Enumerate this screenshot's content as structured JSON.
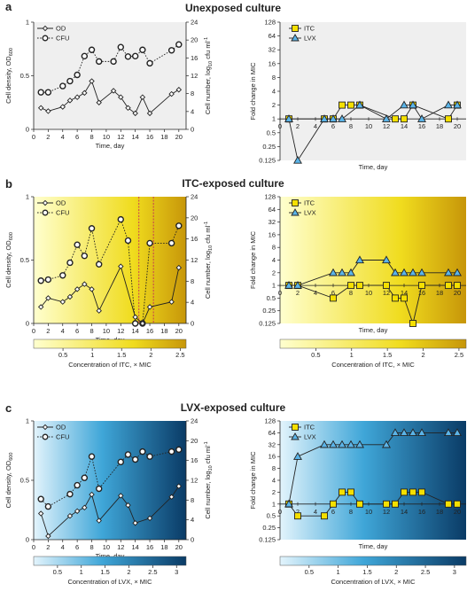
{
  "figure": {
    "panels": [
      {
        "letter": "a",
        "title": "Unexposed culture"
      },
      {
        "letter": "b",
        "title": "ITC-exposed culture"
      },
      {
        "letter": "c",
        "title": "LVX-exposed culture"
      }
    ]
  },
  "axis_text": {
    "x": "Time, day",
    "od": "Cell density, OD600",
    "od_prefix": "Cell density, OD",
    "od_sub": "600",
    "cfu": "Cell number, log10 cfu ml-1",
    "cfu_prefix": "Cell number, log",
    "cfu_sub": "10",
    "cfu_mid": " cfu ml",
    "cfu_sup": "-1",
    "mic": "Fold change in MIC",
    "od_ticks": [
      "0",
      "0.5",
      "1"
    ],
    "cfu_ticks": [
      "0",
      "4",
      "8",
      "12",
      "16",
      "20",
      "24"
    ],
    "day_ticks": [
      "0",
      "2",
      "4",
      "6",
      "8",
      "10",
      "12",
      "14",
      "16",
      "18",
      "20"
    ],
    "mic_ticks": [
      "0.125",
      "0.25",
      "0.5",
      "1",
      "2",
      "4",
      "8",
      "16",
      "32",
      "64",
      "128"
    ]
  },
  "legend": {
    "od": "OD",
    "cfu": "CFU",
    "itc": "ITC",
    "lvx": "LVX"
  },
  "colorbars": {
    "itc": {
      "label": "Concentration of ITC, × MIC",
      "ticks": [
        "0.5",
        "1",
        "1.5",
        "2",
        "2.5"
      ],
      "from": "#ffffcf",
      "to": "#c79609"
    },
    "lvx": {
      "label": "Concentration of LVX, × MIC",
      "ticks": [
        "0.5",
        "1",
        "1.5",
        "2",
        "2.5",
        "3"
      ],
      "from": "#e3f4fc",
      "to": "#0a3b66"
    }
  },
  "colors": {
    "unexposed_bg": "#efefef",
    "itc_marker": "#f5e000",
    "lvx_marker": "#5bb4e8",
    "itc_vline": "#c01a60"
  },
  "chart_data": [
    {
      "panel": "a",
      "type": "line",
      "background": "grey",
      "xlabel": "Time, day",
      "xlim": [
        0,
        21
      ],
      "ylabel": "Cell density, OD600",
      "ylim": [
        0,
        1
      ],
      "y2label": "Cell number, log10 cfu ml-1",
      "y2lim": [
        0,
        24
      ],
      "series": [
        {
          "name": "OD",
          "axis": "left",
          "x": [
            1,
            2,
            4,
            5,
            6,
            7,
            8,
            9,
            11,
            12,
            13,
            14,
            15,
            16,
            19,
            20
          ],
          "values": [
            0.2,
            0.17,
            0.21,
            0.27,
            0.3,
            0.34,
            0.45,
            0.25,
            0.36,
            0.3,
            0.2,
            0.15,
            0.3,
            0.15,
            0.33,
            0.37
          ]
        },
        {
          "name": "CFU",
          "axis": "right",
          "x": [
            1,
            2,
            4,
            5,
            6,
            7,
            8,
            9,
            11,
            12,
            13,
            14,
            15,
            16,
            19,
            20
          ],
          "values": [
            8.3,
            8.3,
            9.7,
            10.8,
            12.2,
            16.4,
            17.8,
            15.2,
            15.2,
            18.4,
            16.3,
            16.4,
            17.8,
            14.8,
            17.7,
            19
          ]
        }
      ]
    },
    {
      "panel": "a",
      "type": "line",
      "xlabel": "Time, day",
      "xlim": [
        0,
        21
      ],
      "ylabel": "Fold change in MIC",
      "yscale": "log2",
      "ylim": [
        0.125,
        128
      ],
      "series": [
        {
          "name": "ITC",
          "x": [
            1,
            5,
            6,
            7,
            8,
            9,
            13,
            14,
            15,
            19,
            20
          ],
          "values": [
            1,
            1,
            1,
            2,
            2,
            2,
            1,
            1,
            2,
            1,
            2
          ]
        },
        {
          "name": "LVX",
          "x": [
            1,
            2,
            5,
            6,
            7,
            9,
            12,
            14,
            15,
            16,
            19,
            20
          ],
          "values": [
            1,
            0.125,
            1,
            1,
            1,
            2,
            1,
            2,
            2,
            1,
            2,
            2
          ]
        }
      ]
    },
    {
      "panel": "b",
      "type": "line",
      "background": "ITC gradient",
      "xlabel": "Time, day",
      "xlim": [
        0,
        21
      ],
      "ylabel": "Cell density, OD600",
      "ylim": [
        0,
        1
      ],
      "y2label": "Cell number, log10 cfu ml-1",
      "y2lim": [
        0,
        24
      ],
      "vlines": [
        14.5,
        16.5
      ],
      "series": [
        {
          "name": "OD",
          "axis": "left",
          "x": [
            1,
            2,
            4,
            5,
            6,
            7,
            8,
            9,
            12,
            14,
            15,
            16,
            19,
            20
          ],
          "values": [
            0.13,
            0.2,
            0.17,
            0.21,
            0.27,
            0.31,
            0.27,
            0.1,
            0.45,
            0.05,
            0,
            0.13,
            0.17,
            0.44
          ]
        },
        {
          "name": "CFU",
          "axis": "right",
          "x": [
            1,
            2,
            4,
            5,
            6,
            7,
            8,
            9,
            12,
            13,
            14,
            15,
            16,
            19,
            20
          ],
          "values": [
            8.1,
            8.3,
            9.1,
            11.5,
            14.9,
            12.8,
            18,
            11.2,
            19.7,
            15.7,
            0,
            0,
            15.2,
            15.2,
            18.5
          ]
        }
      ]
    },
    {
      "panel": "b",
      "type": "line",
      "xlabel": "Time, day",
      "xlim": [
        0,
        21
      ],
      "ylabel": "Fold change in MIC",
      "yscale": "log2",
      "ylim": [
        0.125,
        128
      ],
      "series": [
        {
          "name": "ITC",
          "x": [
            1,
            2,
            6,
            8,
            9,
            12,
            13,
            14,
            15,
            16,
            19,
            20
          ],
          "values": [
            1,
            1,
            0.5,
            1,
            1,
            1,
            0.5,
            0.5,
            0.125,
            1,
            1,
            1
          ]
        },
        {
          "name": "LVX",
          "x": [
            1,
            2,
            6,
            7,
            8,
            9,
            12,
            13,
            14,
            15,
            16,
            19,
            20
          ],
          "values": [
            1,
            1,
            2,
            2,
            2,
            4,
            4,
            2,
            2,
            2,
            2,
            2,
            2
          ]
        }
      ]
    },
    {
      "panel": "c",
      "type": "line",
      "background": "LVX gradient",
      "xlabel": "Time, day",
      "xlim": [
        0,
        21
      ],
      "ylabel": "Cell density, OD600",
      "ylim": [
        0,
        1
      ],
      "y2label": "Cell number, log10 cfu ml-1",
      "y2lim": [
        0,
        24
      ],
      "series": [
        {
          "name": "OD",
          "axis": "left",
          "x": [
            1,
            2,
            5,
            6,
            7,
            8,
            9,
            12,
            13,
            14,
            16,
            19,
            20
          ],
          "values": [
            0.22,
            0.03,
            0.2,
            0.24,
            0.27,
            0.38,
            0.16,
            0.37,
            0.29,
            0.14,
            0.18,
            0.36,
            0.45
          ]
        },
        {
          "name": "CFU",
          "axis": "right",
          "x": [
            1,
            2,
            5,
            6,
            7,
            8,
            9,
            12,
            13,
            14,
            15,
            16,
            19,
            20
          ],
          "values": [
            8.2,
            6.7,
            9.2,
            11,
            12.5,
            16.8,
            10.3,
            15.7,
            17.2,
            16.2,
            17.8,
            16.8,
            17.8,
            18.2
          ]
        }
      ]
    },
    {
      "panel": "c",
      "type": "line",
      "xlabel": "Time, day",
      "xlim": [
        0,
        21
      ],
      "ylabel": "Fold change in MIC",
      "yscale": "log2",
      "ylim": [
        0.125,
        128
      ],
      "series": [
        {
          "name": "ITC",
          "x": [
            1,
            2,
            5,
            6,
            7,
            8,
            9,
            12,
            13,
            14,
            15,
            16,
            19,
            20
          ],
          "values": [
            1,
            0.5,
            0.5,
            1,
            2,
            2,
            1,
            1,
            1,
            2,
            2,
            2,
            1,
            1
          ]
        },
        {
          "name": "LVX",
          "x": [
            1,
            2,
            5,
            6,
            7,
            8,
            9,
            12,
            13,
            14,
            15,
            16,
            19,
            20
          ],
          "values": [
            1,
            16,
            32,
            32,
            32,
            32,
            32,
            32,
            64,
            64,
            64,
            64,
            64,
            64
          ]
        }
      ]
    }
  ]
}
